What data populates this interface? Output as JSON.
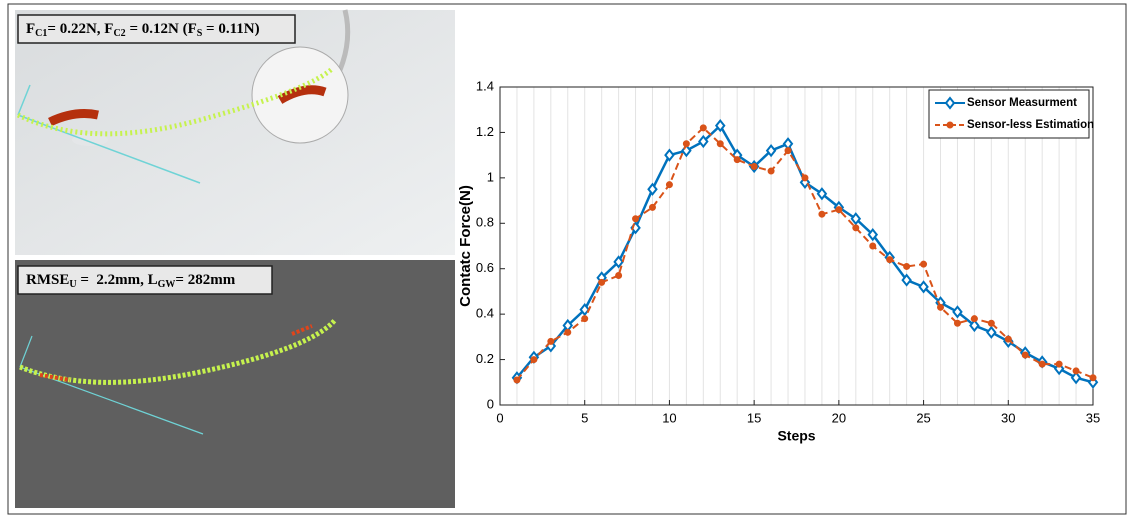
{
  "panels": [
    {
      "label": [
        "F",
        "C1",
        "= 0.22N, F",
        "C2",
        " = 0.12N (F",
        "S",
        " = 0.11N)"
      ]
    },
    {
      "label": [
        "RMSE",
        "U",
        " =  2.2mm, L",
        "GW",
        "= 282mm"
      ]
    }
  ],
  "chart_data": {
    "type": "line",
    "xlabel": "Steps",
    "ylabel": "Contatc Force(N)",
    "x": [
      1,
      2,
      3,
      4,
      5,
      6,
      7,
      8,
      9,
      10,
      11,
      12,
      13,
      14,
      15,
      16,
      17,
      18,
      19,
      20,
      21,
      22,
      23,
      24,
      25,
      26,
      27,
      28,
      29,
      30,
      31,
      32,
      33,
      34,
      35
    ],
    "series": [
      {
        "name": "Sensor Measurment",
        "color": "#0072BD",
        "marker": "diamond",
        "dash": false,
        "values": [
          0.12,
          0.21,
          0.26,
          0.35,
          0.42,
          0.56,
          0.63,
          0.78,
          0.95,
          1.1,
          1.12,
          1.16,
          1.23,
          1.1,
          1.05,
          1.12,
          1.15,
          0.98,
          0.93,
          0.87,
          0.82,
          0.75,
          0.65,
          0.55,
          0.52,
          0.45,
          0.41,
          0.35,
          0.32,
          0.28,
          0.23,
          0.19,
          0.16,
          0.12,
          0.1
        ]
      },
      {
        "name": "Sensor-less Estimation",
        "color": "#D95319",
        "marker": "circle",
        "dash": true,
        "values": [
          0.11,
          0.2,
          0.28,
          0.32,
          0.38,
          0.54,
          0.57,
          0.82,
          0.87,
          0.97,
          1.15,
          1.22,
          1.15,
          1.08,
          1.05,
          1.03,
          1.12,
          1.0,
          0.84,
          0.86,
          0.78,
          0.7,
          0.64,
          0.61,
          0.62,
          0.43,
          0.36,
          0.38,
          0.36,
          0.29,
          0.22,
          0.18,
          0.18,
          0.15,
          0.12
        ]
      }
    ],
    "xlim": [
      0,
      35
    ],
    "xticks": [
      0,
      5,
      10,
      15,
      20,
      25,
      30,
      35
    ],
    "ylim": [
      0,
      1.4
    ],
    "yticks": [
      0,
      0.2,
      0.4,
      0.6,
      0.8,
      1,
      1.2,
      1.4
    ],
    "grid": true,
    "legend": "upper-right"
  }
}
